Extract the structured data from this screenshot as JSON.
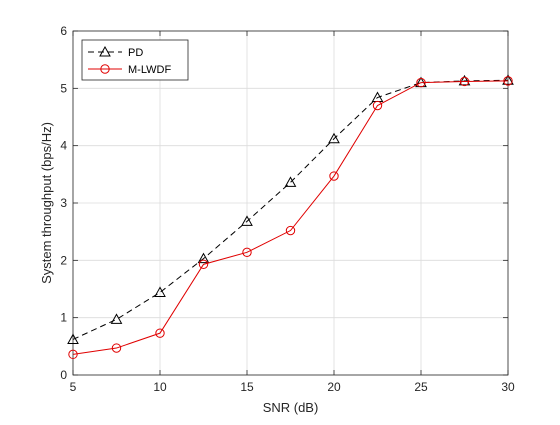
{
  "chart_data": {
    "type": "line",
    "title": "",
    "xlabel": "SNR (dB)",
    "ylabel": "System throughput (bps/Hz)",
    "xlim": [
      5,
      30
    ],
    "ylim": [
      0,
      6
    ],
    "x_ticks": [
      "5",
      "10",
      "15",
      "20",
      "25",
      "30"
    ],
    "y_ticks": [
      "0",
      "1",
      "2",
      "3",
      "4",
      "5",
      "6"
    ],
    "grid": true,
    "legend_position": "top-left",
    "series": [
      {
        "name": "PD",
        "color": "#000000",
        "line_style": "dashed",
        "marker": "triangle",
        "x": [
          5,
          7.5,
          10,
          12.5,
          15,
          17.5,
          20,
          22.5,
          25,
          27.5,
          30
        ],
        "values": [
          0.62,
          0.97,
          1.44,
          2.03,
          2.68,
          3.36,
          4.12,
          4.84,
          5.1,
          5.13,
          5.14
        ]
      },
      {
        "name": "M-LWDF",
        "color": "#e00000",
        "line_style": "solid",
        "marker": "circle",
        "x": [
          5,
          7.5,
          10,
          12.5,
          15,
          17.5,
          20,
          22.5,
          25,
          27.5,
          30
        ],
        "values": [
          0.36,
          0.47,
          0.73,
          1.93,
          2.14,
          2.52,
          3.47,
          4.7,
          5.1,
          5.12,
          5.13
        ]
      }
    ]
  }
}
